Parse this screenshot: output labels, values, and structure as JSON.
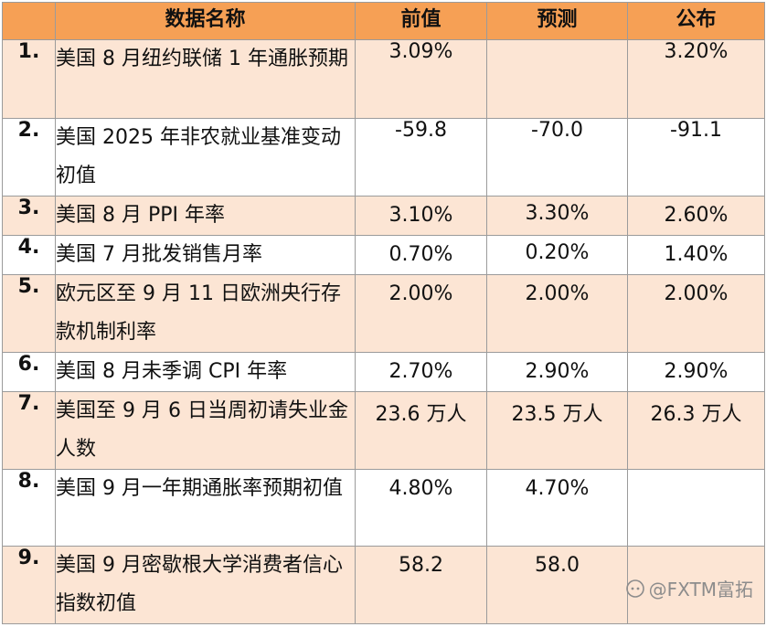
{
  "table": {
    "headers": [
      "",
      "数据名称",
      "前值",
      "预测",
      "公布"
    ],
    "rows": [
      {
        "num": "1.",
        "name": "美国 8 月纽约联储 1 年通胀预期",
        "prev": "3.09%",
        "forecast": "",
        "published": "3.20%"
      },
      {
        "num": "2.",
        "name": "美国 2025 年非农就业基准变动初值",
        "prev": "-59.8",
        "forecast": "-70.0",
        "published": "-91.1"
      },
      {
        "num": "3.",
        "name": "美国 8 月 PPI 年率",
        "prev": "3.10%",
        "forecast": "3.30%",
        "published": "2.60%"
      },
      {
        "num": "4.",
        "name": "美国 7 月批发销售月率",
        "prev": "0.70%",
        "forecast": "0.20%",
        "published": "1.40%"
      },
      {
        "num": "5.",
        "name": "欧元区至 9 月 11 日欧洲央行存款机制利率",
        "prev": "2.00%",
        "forecast": "2.00%",
        "published": "2.00%"
      },
      {
        "num": "6.",
        "name": "美国 8 月未季调 CPI 年率",
        "prev": "2.70%",
        "forecast": "2.90%",
        "published": "2.90%"
      },
      {
        "num": "7.",
        "name": "美国至 9 月 6 日当周初请失业金人数",
        "prev": "23.6 万人",
        "forecast": "23.5 万人",
        "published": "26.3 万人"
      },
      {
        "num": "8.",
        "name": "美国 9 月一年期通胀率预期初值",
        "prev": "4.80%",
        "forecast": "4.70%",
        "published": ""
      },
      {
        "num": "9.",
        "name": "美国 9 月密歇根大学消费者信心指数初值",
        "prev": "58.2",
        "forecast": "58.0",
        "published": ""
      }
    ]
  },
  "watermark": {
    "text": "@FXTM富拓",
    "icon": "zhihu-logo-icon"
  },
  "colors": {
    "header_bg": "#f6a055",
    "odd_row_bg": "#fce5d4",
    "published_text": "#ff1c1c"
  }
}
